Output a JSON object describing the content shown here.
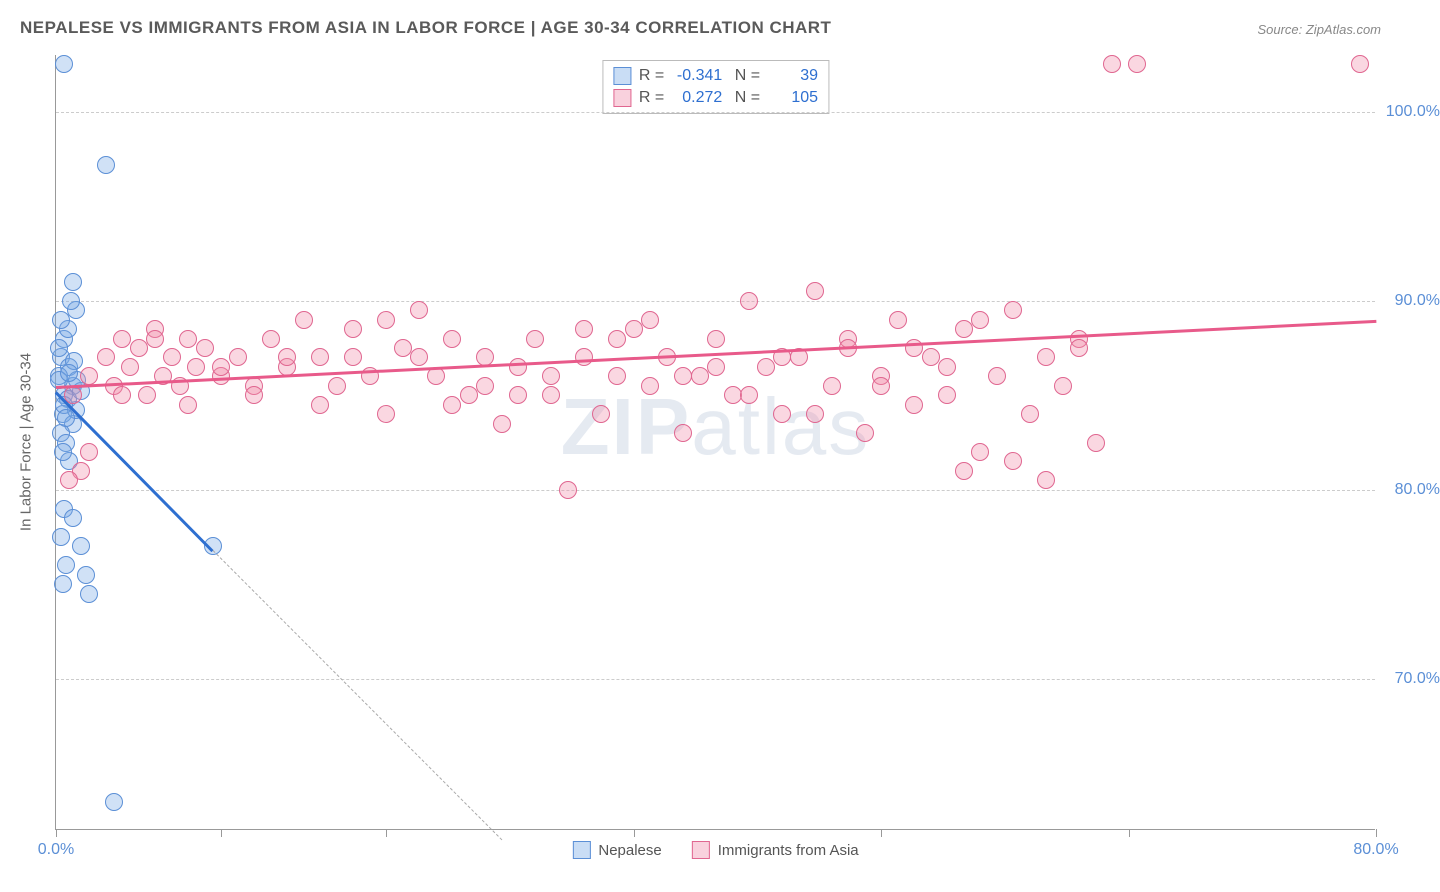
{
  "title": "NEPALESE VS IMMIGRANTS FROM ASIA IN LABOR FORCE | AGE 30-34 CORRELATION CHART",
  "source": "Source: ZipAtlas.com",
  "watermark_bold": "ZIP",
  "watermark_light": "atlas",
  "y_axis_label": "In Labor Force | Age 30-34",
  "chart": {
    "type": "scatter",
    "xlim": [
      0,
      80
    ],
    "ylim": [
      62,
      103
    ],
    "x_ticks": [
      0,
      10,
      20,
      35,
      50,
      65,
      80
    ],
    "x_tick_labels": {
      "0": "0.0%",
      "80": "80.0%"
    },
    "y_ticks": [
      70,
      80,
      90,
      100
    ],
    "y_tick_labels": {
      "70": "70.0%",
      "80": "80.0%",
      "90": "90.0%",
      "100": "100.0%"
    },
    "grid_color": "#cccccc",
    "background_color": "#ffffff",
    "marker_radius": 9,
    "series": [
      {
        "name": "Nepalese",
        "color_fill": "rgba(120,170,230,0.35)",
        "color_stroke": "#5b8fd6",
        "R": "-0.341",
        "N": "39",
        "trend": {
          "x1": 0,
          "y1": 85.2,
          "x2": 9.5,
          "y2": 76.8,
          "solid_end_x": 9.5,
          "dash_x2": 27,
          "dash_y2": 61.5,
          "color": "#2e6fd0"
        },
        "points": [
          [
            0.5,
            102.5
          ],
          [
            3.0,
            97.2
          ],
          [
            1.0,
            91.0
          ],
          [
            1.2,
            89.5
          ],
          [
            0.5,
            88.0
          ],
          [
            0.3,
            87.0
          ],
          [
            0.8,
            86.5
          ],
          [
            1.0,
            85.5
          ],
          [
            0.5,
            85.0
          ],
          [
            0.2,
            86.0
          ],
          [
            0.7,
            84.8
          ],
          [
            1.5,
            85.2
          ],
          [
            0.4,
            84.0
          ],
          [
            1.0,
            83.5
          ],
          [
            0.3,
            83.0
          ],
          [
            0.6,
            82.5
          ],
          [
            1.2,
            84.2
          ],
          [
            0.2,
            85.8
          ],
          [
            0.8,
            81.5
          ],
          [
            0.5,
            79.0
          ],
          [
            1.0,
            78.5
          ],
          [
            0.3,
            77.5
          ],
          [
            1.5,
            77.0
          ],
          [
            0.6,
            76.0
          ],
          [
            1.8,
            75.5
          ],
          [
            0.4,
            75.0
          ],
          [
            2.0,
            74.5
          ],
          [
            0.2,
            87.5
          ],
          [
            9.5,
            77.0
          ],
          [
            0.7,
            88.5
          ],
          [
            0.9,
            90.0
          ],
          [
            0.5,
            84.5
          ],
          [
            1.1,
            86.8
          ],
          [
            0.3,
            89.0
          ],
          [
            3.5,
            63.5
          ],
          [
            0.6,
            83.8
          ],
          [
            1.3,
            85.8
          ],
          [
            0.4,
            82.0
          ],
          [
            0.8,
            86.2
          ]
        ]
      },
      {
        "name": "Immigrants from Asia",
        "color_fill": "rgba(240,140,170,0.35)",
        "color_stroke": "#e06690",
        "R": "0.272",
        "N": "105",
        "trend": {
          "x1": 0,
          "y1": 85.5,
          "x2": 80,
          "y2": 89.0,
          "color": "#e85a8a"
        },
        "points": [
          [
            1,
            85
          ],
          [
            2,
            86
          ],
          [
            3,
            87
          ],
          [
            3.5,
            85.5
          ],
          [
            4,
            88
          ],
          [
            4.5,
            86.5
          ],
          [
            5,
            87.5
          ],
          [
            5.5,
            85
          ],
          [
            6,
            88.5
          ],
          [
            6.5,
            86
          ],
          [
            7,
            87
          ],
          [
            7.5,
            85.5
          ],
          [
            8,
            88
          ],
          [
            8.5,
            86.5
          ],
          [
            9,
            87.5
          ],
          [
            10,
            86
          ],
          [
            11,
            87
          ],
          [
            12,
            85.5
          ],
          [
            13,
            88
          ],
          [
            14,
            86.5
          ],
          [
            15,
            89
          ],
          [
            16,
            87
          ],
          [
            17,
            85.5
          ],
          [
            18,
            88.5
          ],
          [
            19,
            86
          ],
          [
            20,
            84
          ],
          [
            21,
            87.5
          ],
          [
            22,
            89.5
          ],
          [
            23,
            86
          ],
          [
            24,
            88
          ],
          [
            25,
            85
          ],
          [
            26,
            87
          ],
          [
            27,
            83.5
          ],
          [
            28,
            86.5
          ],
          [
            29,
            88
          ],
          [
            30,
            85
          ],
          [
            31,
            80
          ],
          [
            32,
            87
          ],
          [
            33,
            84
          ],
          [
            34,
            86
          ],
          [
            35,
            88.5
          ],
          [
            36,
            85.5
          ],
          [
            37,
            87
          ],
          [
            38,
            83
          ],
          [
            39,
            86
          ],
          [
            40,
            88
          ],
          [
            41,
            85
          ],
          [
            42,
            90
          ],
          [
            43,
            86.5
          ],
          [
            44,
            84
          ],
          [
            45,
            87
          ],
          [
            46,
            90.5
          ],
          [
            47,
            85.5
          ],
          [
            48,
            88
          ],
          [
            49,
            83
          ],
          [
            50,
            86
          ],
          [
            51,
            89
          ],
          [
            52,
            84.5
          ],
          [
            53,
            87
          ],
          [
            54,
            85
          ],
          [
            55,
            88.5
          ],
          [
            56,
            82
          ],
          [
            57,
            86
          ],
          [
            58,
            89.5
          ],
          [
            59,
            84
          ],
          [
            60,
            87
          ],
          [
            61,
            85.5
          ],
          [
            62,
            88
          ],
          [
            63,
            82.5
          ],
          [
            55,
            81
          ],
          [
            48,
            87.5
          ],
          [
            42,
            85
          ],
          [
            36,
            89
          ],
          [
            30,
            86
          ],
          [
            24,
            84.5
          ],
          [
            18,
            87
          ],
          [
            12,
            85
          ],
          [
            6,
            88
          ],
          [
            2,
            82
          ],
          [
            1.5,
            81
          ],
          [
            0.8,
            80.5
          ],
          [
            64,
            102.5
          ],
          [
            65.5,
            102.5
          ],
          [
            79,
            102.5
          ],
          [
            52,
            87.5
          ],
          [
            46,
            84
          ],
          [
            40,
            86.5
          ],
          [
            34,
            88
          ],
          [
            28,
            85
          ],
          [
            22,
            87
          ],
          [
            16,
            84.5
          ],
          [
            10,
            86.5
          ],
          [
            4,
            85
          ],
          [
            56,
            89
          ],
          [
            50,
            85.5
          ],
          [
            44,
            87
          ],
          [
            38,
            86
          ],
          [
            32,
            88.5
          ],
          [
            26,
            85.5
          ],
          [
            20,
            89
          ],
          [
            14,
            87
          ],
          [
            8,
            84.5
          ],
          [
            60,
            80.5
          ],
          [
            54,
            86.5
          ],
          [
            58,
            81.5
          ],
          [
            62,
            87.5
          ]
        ]
      }
    ]
  },
  "legend_bottom": [
    {
      "label": "Nepalese",
      "swatch": "blue"
    },
    {
      "label": "Immigrants from Asia",
      "swatch": "pink"
    }
  ]
}
